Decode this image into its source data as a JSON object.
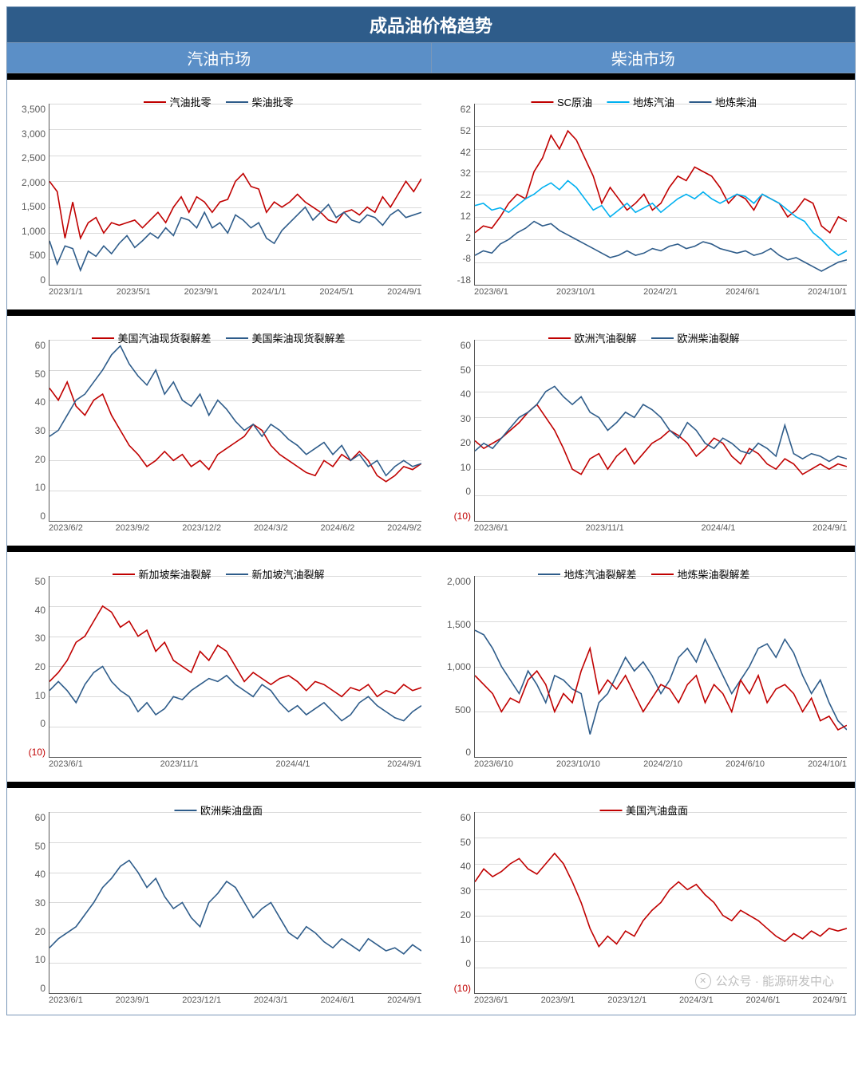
{
  "colors": {
    "header_bg": "#2e5c8a",
    "subheader_bg": "#5b8fc7",
    "red": "#c00000",
    "blue": "#2e5c8a",
    "cyan": "#00b0f0",
    "grid": "#d9d9d9",
    "axis": "#595959",
    "text": "#595959",
    "neg": "#c00000"
  },
  "main_title": "成品油价格趋势",
  "sub_left": "汽油市场",
  "sub_right": "柴油市场",
  "watermark": "公众号 · 能源研发中心",
  "charts": [
    {
      "id": "c1",
      "ylim": [
        0,
        3500
      ],
      "ystep": 500,
      "xticks": [
        "2023/1/1",
        "2023/5/1",
        "2023/9/1",
        "2024/1/1",
        "2024/5/1",
        "2024/9/1"
      ],
      "series": [
        {
          "name": "汽油批零",
          "color": "red",
          "points": [
            2000,
            1800,
            900,
            1600,
            900,
            1200,
            1300,
            1000,
            1200,
            1150,
            1200,
            1250,
            1100,
            1250,
            1400,
            1200,
            1500,
            1700,
            1400,
            1700,
            1600,
            1400,
            1600,
            1650,
            2000,
            2150,
            1900,
            1850,
            1400,
            1600,
            1500,
            1600,
            1750,
            1600,
            1500,
            1400,
            1250,
            1200,
            1400,
            1450,
            1350,
            1500,
            1400,
            1700,
            1500,
            1750,
            2000,
            1800,
            2050
          ]
        },
        {
          "name": "柴油批零",
          "color": "blue",
          "points": [
            850,
            400,
            750,
            700,
            280,
            650,
            550,
            750,
            600,
            800,
            950,
            720,
            850,
            1000,
            900,
            1100,
            950,
            1300,
            1250,
            1100,
            1400,
            1100,
            1200,
            1000,
            1350,
            1250,
            1100,
            1200,
            900,
            800,
            1050,
            1200,
            1350,
            1500,
            1250,
            1400,
            1550,
            1300,
            1400,
            1250,
            1200,
            1350,
            1300,
            1150,
            1350,
            1450,
            1300,
            1350,
            1400
          ]
        }
      ]
    },
    {
      "id": "c2",
      "ylim": [
        -18,
        62
      ],
      "ystep": 10,
      "xticks": [
        "2023/6/1",
        "2023/10/1",
        "2024/2/1",
        "2024/6/1",
        "2024/10/1"
      ],
      "series": [
        {
          "name": "SC原油",
          "color": "red",
          "points": [
            5,
            8,
            7,
            12,
            18,
            22,
            20,
            32,
            38,
            48,
            42,
            50,
            46,
            38,
            30,
            18,
            25,
            20,
            15,
            18,
            22,
            15,
            18,
            25,
            30,
            28,
            34,
            32,
            30,
            25,
            18,
            22,
            20,
            15,
            22,
            20,
            18,
            12,
            15,
            20,
            18,
            8,
            5,
            12,
            10
          ]
        },
        {
          "name": "地炼汽油",
          "color": "cyan",
          "points": [
            17,
            18,
            15,
            16,
            14,
            17,
            20,
            22,
            25,
            27,
            24,
            28,
            25,
            20,
            15,
            17,
            12,
            15,
            18,
            14,
            16,
            18,
            14,
            17,
            20,
            22,
            20,
            23,
            20,
            18,
            20,
            22,
            21,
            18,
            22,
            20,
            18,
            15,
            12,
            10,
            5,
            2,
            -2,
            -5,
            -3
          ]
        },
        {
          "name": "地炼柴油",
          "color": "blue",
          "points": [
            -5,
            -3,
            -4,
            0,
            2,
            5,
            7,
            10,
            8,
            9,
            6,
            4,
            2,
            0,
            -2,
            -4,
            -6,
            -5,
            -3,
            -5,
            -4,
            -2,
            -3,
            -1,
            0,
            -2,
            -1,
            1,
            0,
            -2,
            -3,
            -4,
            -3,
            -5,
            -4,
            -2,
            -5,
            -7,
            -6,
            -8,
            -10,
            -12,
            -10,
            -8,
            -7
          ]
        }
      ]
    },
    {
      "id": "c3",
      "ylim": [
        0,
        60
      ],
      "ystep": 10,
      "xticks": [
        "2023/6/2",
        "2023/9/2",
        "2023/12/2",
        "2024/3/2",
        "2024/6/2",
        "2024/9/2"
      ],
      "series": [
        {
          "name": "美国汽油现货裂解差",
          "color": "red",
          "points": [
            44,
            40,
            46,
            38,
            35,
            40,
            42,
            35,
            30,
            25,
            22,
            18,
            20,
            23,
            20,
            22,
            18,
            20,
            17,
            22,
            24,
            26,
            28,
            32,
            30,
            25,
            22,
            20,
            18,
            16,
            15,
            20,
            18,
            22,
            20,
            23,
            20,
            15,
            13,
            15,
            18,
            17,
            19
          ]
        },
        {
          "name": "美国柴油现货裂解差",
          "color": "blue",
          "points": [
            28,
            30,
            35,
            40,
            42,
            46,
            50,
            55,
            58,
            52,
            48,
            45,
            50,
            42,
            46,
            40,
            38,
            42,
            35,
            40,
            37,
            33,
            30,
            32,
            28,
            32,
            30,
            27,
            25,
            22,
            24,
            26,
            22,
            25,
            20,
            22,
            18,
            20,
            15,
            18,
            20,
            18,
            19
          ]
        }
      ]
    },
    {
      "id": "c4",
      "ylim": [
        -10,
        60
      ],
      "ystep": 10,
      "neg_labels": [
        -10
      ],
      "xticks": [
        "2023/6/1",
        "2023/11/1",
        "2024/4/1",
        "2024/9/1"
      ],
      "series": [
        {
          "name": "欧洲汽油裂解",
          "color": "red",
          "points": [
            21,
            18,
            20,
            22,
            25,
            28,
            32,
            35,
            30,
            25,
            18,
            10,
            8,
            14,
            16,
            10,
            15,
            18,
            12,
            16,
            20,
            22,
            25,
            23,
            20,
            15,
            18,
            22,
            20,
            15,
            12,
            18,
            16,
            12,
            10,
            14,
            12,
            8,
            10,
            12,
            10,
            12,
            11
          ]
        },
        {
          "name": "欧洲柴油裂解",
          "color": "blue",
          "points": [
            17,
            20,
            18,
            22,
            26,
            30,
            32,
            35,
            40,
            42,
            38,
            35,
            38,
            32,
            30,
            25,
            28,
            32,
            30,
            35,
            33,
            30,
            25,
            22,
            28,
            25,
            20,
            18,
            22,
            20,
            17,
            16,
            20,
            18,
            15,
            27,
            16,
            14,
            16,
            15,
            13,
            15,
            14
          ]
        }
      ]
    },
    {
      "id": "c5",
      "ylim": [
        -10,
        50
      ],
      "ystep": 10,
      "neg_labels": [
        -10
      ],
      "xticks": [
        "2023/6/1",
        "2023/11/1",
        "2024/4/1",
        "2024/9/1"
      ],
      "series": [
        {
          "name": "新加坡柴油裂解",
          "color": "red",
          "points": [
            15,
            18,
            22,
            28,
            30,
            35,
            40,
            38,
            33,
            35,
            30,
            32,
            25,
            28,
            22,
            20,
            18,
            25,
            22,
            27,
            25,
            20,
            15,
            18,
            16,
            14,
            16,
            17,
            15,
            12,
            15,
            14,
            12,
            10,
            13,
            12,
            14,
            10,
            12,
            11,
            14,
            12,
            13
          ]
        },
        {
          "name": "新加坡汽油裂解",
          "color": "blue",
          "points": [
            12,
            15,
            12,
            8,
            14,
            18,
            20,
            15,
            12,
            10,
            5,
            8,
            4,
            6,
            10,
            9,
            12,
            14,
            16,
            15,
            17,
            14,
            12,
            10,
            14,
            12,
            8,
            5,
            7,
            4,
            6,
            8,
            5,
            2,
            4,
            8,
            10,
            7,
            5,
            3,
            2,
            5,
            7
          ]
        }
      ]
    },
    {
      "id": "c6",
      "ylim": [
        0,
        2000
      ],
      "ystep": 500,
      "xticks": [
        "2023/6/10",
        "2023/10/10",
        "2024/2/10",
        "2024/6/10",
        "2024/10/1"
      ],
      "series": [
        {
          "name": "地炼汽油裂解差",
          "color": "blue",
          "points": [
            1400,
            1350,
            1200,
            1000,
            850,
            700,
            950,
            800,
            600,
            900,
            850,
            750,
            700,
            250,
            600,
            700,
            900,
            1100,
            950,
            1050,
            900,
            700,
            850,
            1100,
            1200,
            1050,
            1300,
            1100,
            900,
            700,
            850,
            1000,
            1200,
            1250,
            1100,
            1300,
            1150,
            900,
            700,
            850,
            600,
            400,
            300
          ]
        },
        {
          "name": "地炼柴油裂解差",
          "color": "red",
          "points": [
            900,
            800,
            700,
            500,
            650,
            600,
            850,
            950,
            800,
            500,
            700,
            600,
            950,
            1200,
            700,
            850,
            750,
            900,
            700,
            500,
            650,
            800,
            750,
            600,
            800,
            900,
            600,
            800,
            700,
            500,
            850,
            700,
            900,
            600,
            750,
            800,
            700,
            500,
            650,
            400,
            450,
            300,
            350
          ]
        }
      ]
    },
    {
      "id": "c7",
      "ylim": [
        0,
        60
      ],
      "ystep": 10,
      "xticks": [
        "2023/6/1",
        "2023/9/1",
        "2023/12/1",
        "2024/3/1",
        "2024/6/1",
        "2024/9/1"
      ],
      "series": [
        {
          "name": "欧洲柴油盘面",
          "color": "blue",
          "points": [
            15,
            18,
            20,
            22,
            26,
            30,
            35,
            38,
            42,
            44,
            40,
            35,
            38,
            32,
            28,
            30,
            25,
            22,
            30,
            33,
            37,
            35,
            30,
            25,
            28,
            30,
            25,
            20,
            18,
            22,
            20,
            17,
            15,
            18,
            16,
            14,
            18,
            16,
            14,
            15,
            13,
            16,
            14
          ]
        }
      ]
    },
    {
      "id": "c8",
      "ylim": [
        -10,
        60
      ],
      "ystep": 10,
      "neg_labels": [
        -10
      ],
      "xticks": [
        "2023/6/1",
        "2023/9/1",
        "2023/12/1",
        "2024/3/1",
        "2024/6/1",
        "2024/9/1"
      ],
      "series": [
        {
          "name": "美国汽油盘面",
          "color": "red",
          "points": [
            33,
            38,
            35,
            37,
            40,
            42,
            38,
            36,
            40,
            44,
            40,
            33,
            25,
            15,
            8,
            12,
            9,
            14,
            12,
            18,
            22,
            25,
            30,
            33,
            30,
            32,
            28,
            25,
            20,
            18,
            22,
            20,
            18,
            15,
            12,
            10,
            13,
            11,
            14,
            12,
            15,
            14,
            15
          ]
        }
      ],
      "watermark": true
    }
  ]
}
